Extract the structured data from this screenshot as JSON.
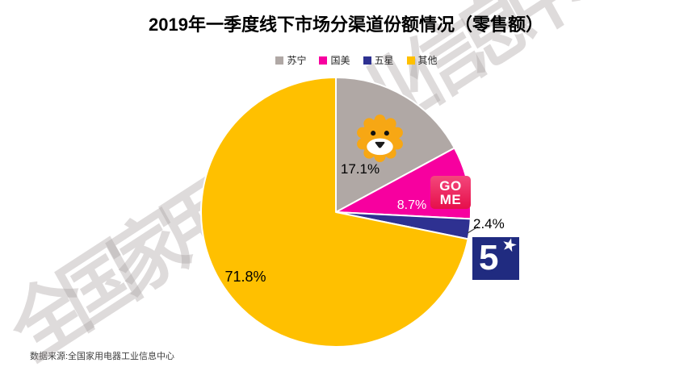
{
  "chart_data": {
    "type": "pie",
    "title": "2019年一季度线下市场分渠道份额情况（零售额）",
    "categories": [
      "苏宁",
      "国美",
      "五星",
      "其他"
    ],
    "values": [
      17.1,
      8.7,
      2.4,
      71.8
    ],
    "slice_labels": [
      "17.1%",
      "8.7%",
      "2.4%",
      "71.8%"
    ],
    "colors": [
      "#b0a8a5",
      "#f7009f",
      "#2e3191",
      "#ffc000"
    ],
    "unit": "percent",
    "start_angle_deg": 0,
    "direction": "clockwise",
    "legend_position": "top",
    "legend_entries": [
      "苏宁",
      "国美",
      "五星",
      "其他"
    ]
  },
  "watermark": {
    "text": "全国家用电器工业信息中心"
  },
  "source_note": "数据来源:全国家用电器工业信息中心",
  "logos": {
    "suning": "suning-lion",
    "gome_line1": "GO",
    "gome_line2": "ME",
    "fivestar_digit": "5",
    "fivestar_star": "★"
  },
  "lion_colors": {
    "mane": "#f7a714",
    "eyes": "#111111",
    "muzzle": "#ffffff",
    "nose": "#1a1a1a"
  }
}
